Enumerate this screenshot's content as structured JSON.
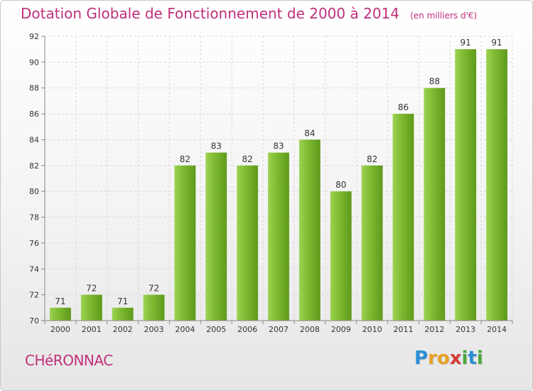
{
  "chart_data": {
    "type": "bar",
    "title": "Dotation Globale de Fonctionnement de 2000 à 2014",
    "subtitle": "(en milliers d'€)",
    "xlabel": "",
    "ylabel": "",
    "categories": [
      "2000",
      "2001",
      "2002",
      "2003",
      "2004",
      "2005",
      "2006",
      "2007",
      "2008",
      "2009",
      "2010",
      "2011",
      "2012",
      "2013",
      "2014"
    ],
    "values": [
      71,
      72,
      71,
      72,
      82,
      83,
      82,
      83,
      84,
      80,
      82,
      86,
      88,
      91,
      91
    ],
    "ylim": [
      70,
      92
    ],
    "yticks": [
      70,
      72,
      74,
      76,
      78,
      80,
      82,
      84,
      86,
      88,
      90,
      92
    ],
    "grid": true,
    "legend": "none",
    "bar_color": "#7cb82f",
    "bar_color_light": "#9dd353",
    "bar_color_dark": "#5f9a1c"
  },
  "footer": {
    "commune": "CHéRONNAC"
  },
  "brand": {
    "letters": [
      "P",
      "r",
      "o",
      "x",
      "i",
      "t",
      "i"
    ],
    "letter_colors": [
      "#2a8fd6",
      "#e8a020",
      "#e8a020",
      "#d63a3a",
      "#4aa83c",
      "#2a8fd6",
      "#4aa83c"
    ]
  },
  "colors": {
    "accent": "#c0307a",
    "grid": "#d8d8d8",
    "axis": "#888888",
    "text": "#333333"
  }
}
